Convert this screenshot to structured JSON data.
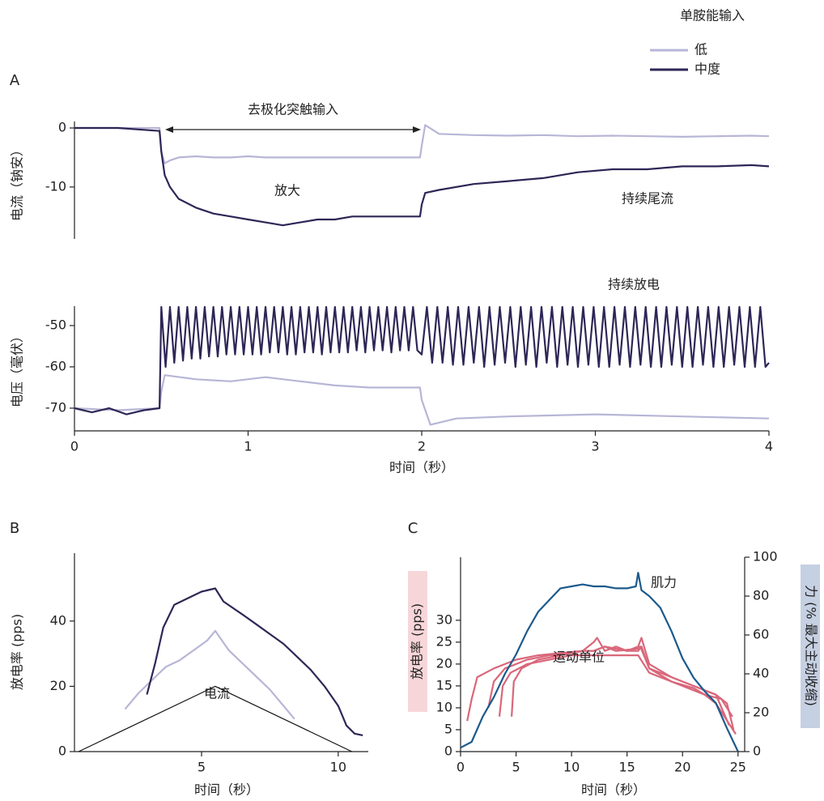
{
  "legend_title": "单胺能输入",
  "chart_data": [
    {
      "type": "line",
      "label": "A",
      "ylabel": "电流（钠安）",
      "annotations": [
        "去极化突触输入",
        "放大",
        "持续尾流"
      ],
      "xlim": [
        0,
        4
      ],
      "ylim": [
        -18.8,
        1.1
      ],
      "yticks": [
        0,
        -10
      ],
      "x": [
        0,
        0.25,
        0.49,
        0.5,
        0.52,
        0.55,
        0.6,
        0.7,
        0.8,
        0.9,
        1.0,
        1.1,
        1.2,
        1.3,
        1.4,
        1.5,
        1.6,
        1.7,
        1.8,
        1.9,
        1.99,
        2.0,
        2.02,
        2.1,
        2.3,
        2.5,
        2.7,
        2.9,
        3.1,
        3.3,
        3.5,
        3.7,
        3.9,
        4.0
      ],
      "series": [
        {
          "name": "低",
          "color": "#b7b6d6",
          "values": [
            0,
            0,
            0,
            -4,
            -6,
            -5.5,
            -5,
            -4.8,
            -5,
            -5,
            -4.8,
            -5,
            -5,
            -5,
            -5,
            -5,
            -5,
            -5,
            -5,
            -5,
            -5,
            -3,
            0.5,
            -1,
            -1.2,
            -1.3,
            -1.2,
            -1.4,
            -1.3,
            -1.4,
            -1.5,
            -1.4,
            -1.3,
            -1.4
          ]
        },
        {
          "name": "中度",
          "color": "#2e2656",
          "values": [
            0,
            0,
            -0.5,
            -4,
            -8,
            -10,
            -12,
            -13.5,
            -14.5,
            -15,
            -15.5,
            -16,
            -16.5,
            -16,
            -15.5,
            -15.5,
            -15,
            -15,
            -15,
            -15,
            -15,
            -13,
            -11,
            -10.5,
            -9.5,
            -9,
            -8.5,
            -7.5,
            -7,
            -7,
            -6.5,
            -6.5,
            -6.3,
            -6.5
          ]
        }
      ]
    },
    {
      "type": "line",
      "ylabel": "电压（毫伏）",
      "xlabel": "时间（秒）",
      "annotations": [
        "持续放电"
      ],
      "xlim": [
        0,
        4
      ],
      "ylim": [
        -75.5,
        -45.3
      ],
      "xticks": [
        0,
        1,
        2,
        3,
        4
      ],
      "yticks": [
        -50,
        -60,
        -70
      ],
      "series": [
        {
          "color": "#b7b6d6",
          "x": [
            0,
            0.25,
            0.49,
            0.5,
            0.52,
            0.7,
            0.9,
            1.1,
            1.3,
            1.5,
            1.7,
            1.9,
            1.99,
            2.0,
            2.05,
            2.2,
            2.5,
            3.0,
            3.5,
            4.0
          ],
          "values": [
            -70,
            -70.5,
            -70,
            -66,
            -62,
            -63,
            -63.5,
            -62.5,
            -63.5,
            -64.5,
            -65,
            -65,
            -65,
            -68,
            -74,
            -72.5,
            -72,
            -71.5,
            -72,
            -72.5
          ]
        },
        {
          "color": "#2e2656",
          "x": [
            0,
            0.1,
            0.2,
            0.3,
            0.4,
            0.49,
            0.5,
            0.525,
            0.55,
            0.575,
            0.6,
            0.625,
            0.65,
            0.675,
            0.7,
            0.725,
            0.75,
            0.775,
            0.8,
            0.825,
            0.85,
            0.875,
            0.9,
            0.925,
            0.95,
            0.975,
            1,
            1.025,
            1.05,
            1.075,
            1.1,
            1.125,
            1.15,
            1.175,
            1.2,
            1.225,
            1.25,
            1.275,
            1.3,
            1.325,
            1.35,
            1.375,
            1.4,
            1.425,
            1.45,
            1.475,
            1.5,
            1.525,
            1.55,
            1.575,
            1.6,
            1.625,
            1.65,
            1.675,
            1.7,
            1.725,
            1.75,
            1.775,
            1.8,
            1.825,
            1.85,
            1.875,
            1.9,
            1.925,
            1.95,
            1.975,
            2,
            2.03,
            2.06,
            2.09,
            2.12,
            2.15,
            2.18,
            2.21,
            2.24,
            2.27,
            2.3,
            2.33,
            2.36,
            2.39,
            2.42,
            2.45,
            2.48,
            2.51,
            2.54,
            2.57,
            2.6,
            2.63,
            2.66,
            2.69,
            2.72,
            2.75,
            2.78,
            2.81,
            2.84,
            2.87,
            2.9,
            2.93,
            2.96,
            2.99,
            3.02,
            3.05,
            3.08,
            3.11,
            3.14,
            3.17,
            3.2,
            3.23,
            3.26,
            3.29,
            3.32,
            3.35,
            3.38,
            3.41,
            3.44,
            3.47,
            3.5,
            3.53,
            3.56,
            3.59,
            3.62,
            3.65,
            3.68,
            3.71,
            3.74,
            3.77,
            3.8,
            3.83,
            3.86,
            3.89,
            3.92,
            3.95,
            3.98,
            4.0
          ],
          "values": [
            -70,
            -71,
            -70,
            -71.5,
            -70.5,
            -70,
            -45.5,
            -60,
            -45.5,
            -59,
            -45.5,
            -58.5,
            -45.5,
            -58,
            -45.5,
            -58,
            -45.5,
            -57.5,
            -45.5,
            -57.5,
            -45.5,
            -57,
            -45.5,
            -57,
            -45.5,
            -57,
            -45.5,
            -57,
            -45.5,
            -57,
            -45.5,
            -56.5,
            -45.5,
            -56.5,
            -45.5,
            -57,
            -45.5,
            -57,
            -45.5,
            -56.5,
            -45.5,
            -56.5,
            -45.5,
            -57,
            -45.5,
            -56.5,
            -45.5,
            -56.5,
            -45.5,
            -56.5,
            -45.5,
            -56,
            -45.5,
            -56.5,
            -45.5,
            -56,
            -45.5,
            -56,
            -45.5,
            -56.5,
            -45.5,
            -56,
            -45.5,
            -56,
            -45.5,
            -56,
            -57,
            -45.5,
            -59,
            -45.5,
            -59,
            -45.5,
            -59.5,
            -45.5,
            -59.5,
            -45.5,
            -59,
            -45.5,
            -60,
            -45.5,
            -59.5,
            -45.5,
            -59,
            -45.5,
            -60,
            -45.5,
            -59.5,
            -45.5,
            -60,
            -45.5,
            -59,
            -45.5,
            -60,
            -45.5,
            -59.5,
            -45.5,
            -60,
            -45.5,
            -59.5,
            -45.5,
            -60,
            -45.5,
            -60,
            -45.5,
            -59.5,
            -45.5,
            -60,
            -45.5,
            -59.5,
            -45.5,
            -60,
            -45.5,
            -60,
            -45.5,
            -59.5,
            -45.5,
            -60,
            -45.5,
            -60,
            -45.5,
            -59.5,
            -45.5,
            -60,
            -45.5,
            -60,
            -45.5,
            -59.5,
            -45.5,
            -60,
            -45.5,
            -60,
            -45.5,
            -60,
            -59
          ]
        }
      ]
    },
    {
      "type": "line",
      "label": "B",
      "ylabel": "放电率 (pps)",
      "xlabel": "时间（秒）",
      "xlim": [
        0.35,
        11.1
      ],
      "ylim": [
        0,
        60.8
      ],
      "xticks": [
        5,
        10
      ],
      "yticks": [
        0,
        20,
        40
      ],
      "series": [
        {
          "name": "电流",
          "color": "#111111",
          "x": [
            0.5,
            5.5,
            10.5
          ],
          "values": [
            0,
            20,
            0
          ]
        },
        {
          "color": "#b7b6d6",
          "x": [
            2.2,
            2.7,
            3.2,
            3.7,
            4.2,
            4.7,
            5.2,
            5.5,
            6,
            6.5,
            7,
            7.5,
            8,
            8.4
          ],
          "values": [
            13,
            18,
            22,
            26,
            28,
            31,
            34,
            37,
            31,
            27,
            23,
            19,
            14,
            10
          ]
        },
        {
          "color": "#2e2656",
          "x": [
            3,
            3.3,
            3.6,
            4,
            4.5,
            5,
            5.5,
            5.8,
            6.5,
            7,
            7.5,
            8,
            8.5,
            9,
            9.5,
            10,
            10.3,
            10.6,
            10.9
          ],
          "values": [
            17.5,
            27,
            38,
            45,
            47,
            49,
            50,
            46,
            42,
            39,
            36,
            33,
            29,
            25,
            20,
            14,
            8,
            5.5,
            5
          ]
        }
      ]
    },
    {
      "type": "line",
      "label": "C",
      "ylabel": "放电率 (pps)",
      "y2label": "力 (% 最大主动收缩)",
      "xlabel": "时间（秒）",
      "annotations": [
        "肌力",
        "运动单位"
      ],
      "xlim": [
        0,
        25.6
      ],
      "ylim": [
        0,
        44.4
      ],
      "y2lim": [
        0,
        100
      ],
      "xticks": [
        0,
        5,
        10,
        15,
        20,
        25
      ],
      "yticks": [
        0,
        5,
        10,
        15,
        20,
        25,
        30
      ],
      "y2ticks": [
        0,
        20,
        40,
        60,
        80,
        100
      ],
      "series": [
        {
          "color": "#d9677a",
          "x": [
            0.6,
            1,
            1.5,
            3,
            5,
            7,
            9,
            11,
            12,
            12.3,
            13,
            14,
            15,
            16,
            16.3,
            17,
            19,
            21,
            22,
            23,
            24,
            24.6
          ],
          "values": [
            7,
            12,
            17,
            19,
            21,
            22,
            22.5,
            23,
            25,
            26,
            23,
            24,
            23,
            24,
            26,
            20,
            17,
            15,
            14,
            13,
            11,
            5
          ]
        },
        {
          "color": "#d9677a",
          "x": [
            2.5,
            3,
            4,
            6,
            8,
            10,
            11,
            12,
            13,
            14,
            15,
            16,
            16.3,
            17,
            19,
            21,
            22,
            23,
            24.2
          ],
          "values": [
            10,
            16,
            19,
            21,
            22,
            22.5,
            23,
            23,
            24,
            23.5,
            23,
            23,
            24,
            19,
            17,
            15,
            14,
            13,
            6
          ]
        },
        {
          "color": "#d9677a",
          "x": [
            3.5,
            3.8,
            4.5,
            6,
            8,
            10,
            12,
            14,
            16,
            17,
            19,
            21,
            22,
            23.5,
            24.5
          ],
          "values": [
            8,
            15,
            18,
            20,
            21,
            22,
            22,
            22,
            22,
            18,
            16,
            14.5,
            13,
            12,
            8
          ]
        },
        {
          "color": "#d9677a",
          "x": [
            4.6,
            4.8,
            5.5,
            7,
            9,
            11,
            12,
            13,
            14,
            16,
            16.2,
            17,
            19,
            21,
            22,
            23,
            24.8
          ],
          "values": [
            8,
            16,
            19,
            21,
            22,
            23,
            23,
            24,
            23,
            23.5,
            24,
            19,
            16,
            14,
            13,
            11,
            4
          ]
        },
        {
          "color": "#1c5a8c",
          "axis": "y2",
          "x": [
            0,
            1,
            2,
            3,
            4,
            5,
            6,
            7,
            8,
            9,
            10,
            11,
            12,
            13,
            14,
            15,
            15.8,
            16,
            16.3,
            17,
            18,
            19,
            20,
            21,
            22,
            23,
            24,
            25
          ],
          "values": [
            2,
            5,
            18,
            28,
            40,
            50,
            62,
            72,
            78,
            84,
            85,
            86,
            85,
            85,
            84,
            84,
            85,
            92,
            83,
            80,
            74,
            62,
            48,
            38,
            31,
            25,
            12,
            0
          ]
        }
      ]
    }
  ]
}
